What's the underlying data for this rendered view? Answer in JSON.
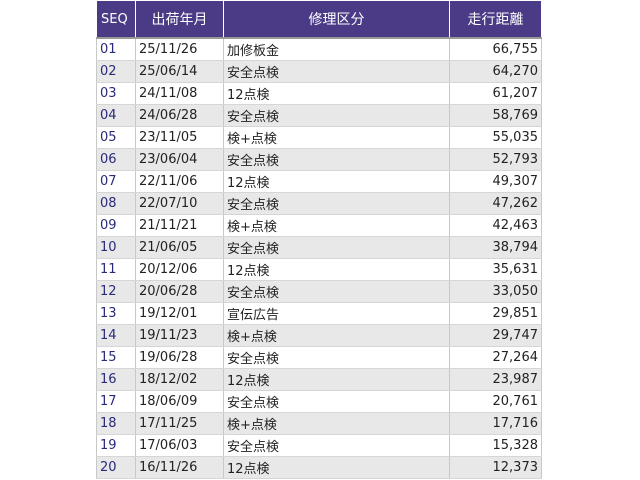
{
  "table": {
    "headers": {
      "seq": "SEQ",
      "date": "出荷年月",
      "category": "修理区分",
      "distance": "走行距離"
    },
    "rows": [
      {
        "seq": "01",
        "date": "25/11/26",
        "category": "加修板金",
        "distance": "66,755"
      },
      {
        "seq": "02",
        "date": "25/06/14",
        "category": "安全点検",
        "distance": "64,270"
      },
      {
        "seq": "03",
        "date": "24/11/08",
        "category": "12点検",
        "distance": "61,207"
      },
      {
        "seq": "04",
        "date": "24/06/28",
        "category": "安全点検",
        "distance": "58,769"
      },
      {
        "seq": "05",
        "date": "23/11/05",
        "category": "検+点検",
        "distance": "55,035"
      },
      {
        "seq": "06",
        "date": "23/06/04",
        "category": "安全点検",
        "distance": "52,793"
      },
      {
        "seq": "07",
        "date": "22/11/06",
        "category": "12点検",
        "distance": "49,307"
      },
      {
        "seq": "08",
        "date": "22/07/10",
        "category": "安全点検",
        "distance": "47,262"
      },
      {
        "seq": "09",
        "date": "21/11/21",
        "category": "検+点検",
        "distance": "42,463"
      },
      {
        "seq": "10",
        "date": "21/06/05",
        "category": "安全点検",
        "distance": "38,794"
      },
      {
        "seq": "11",
        "date": "20/12/06",
        "category": "12点検",
        "distance": "35,631"
      },
      {
        "seq": "12",
        "date": "20/06/28",
        "category": "安全点検",
        "distance": "33,050"
      },
      {
        "seq": "13",
        "date": "19/12/01",
        "category": "宣伝広告",
        "distance": "29,851"
      },
      {
        "seq": "14",
        "date": "19/11/23",
        "category": "検+点検",
        "distance": "29,747"
      },
      {
        "seq": "15",
        "date": "19/06/28",
        "category": "安全点検",
        "distance": "27,264"
      },
      {
        "seq": "16",
        "date": "18/12/02",
        "category": "12点検",
        "distance": "23,987"
      },
      {
        "seq": "17",
        "date": "18/06/09",
        "category": "安全点検",
        "distance": "20,761"
      },
      {
        "seq": "18",
        "date": "17/11/25",
        "category": "検+点検",
        "distance": "17,716"
      },
      {
        "seq": "19",
        "date": "17/06/03",
        "category": "安全点検",
        "distance": "15,328"
      },
      {
        "seq": "20",
        "date": "16/11/26",
        "category": "12点検",
        "distance": "12,373"
      }
    ]
  },
  "colors": {
    "header_bg": "#4b3a86",
    "header_text": "#ffffff",
    "row_alt": "#e8e8e8",
    "seq_text": "#2a2a7a"
  }
}
